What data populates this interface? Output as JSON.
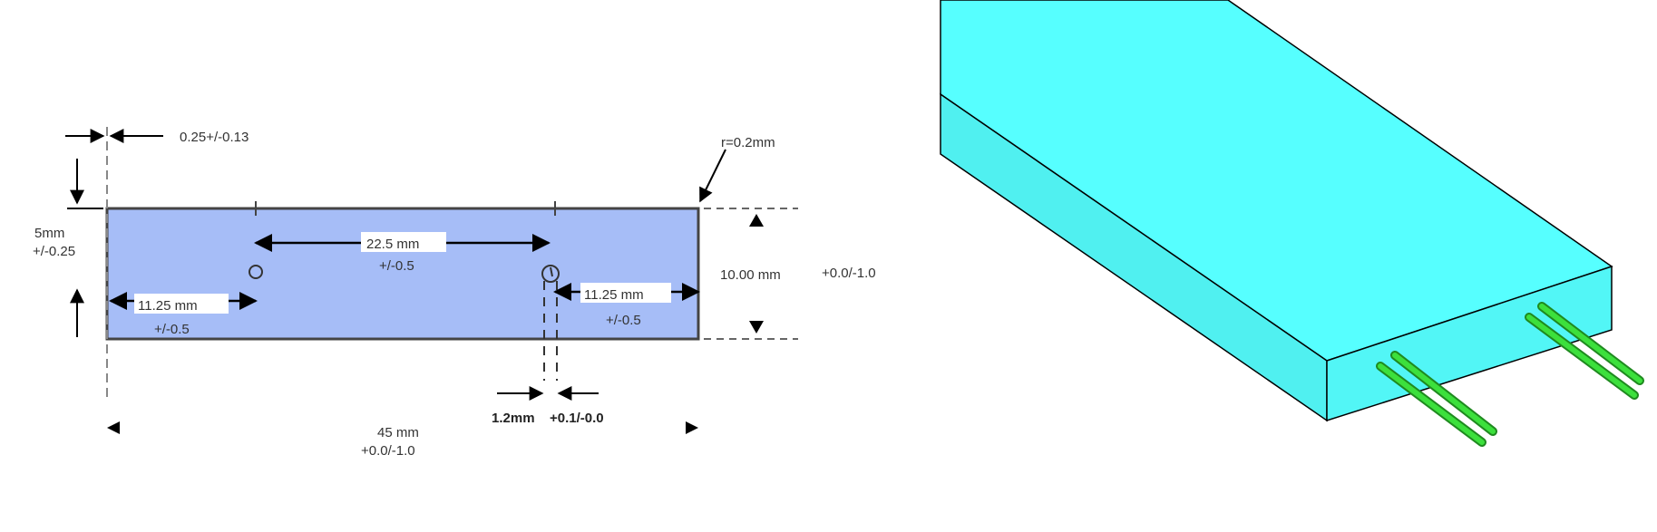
{
  "colors": {
    "plate_fill": "#a6bdf7",
    "slab_top": "#56ffff",
    "slab_side": "#50f0f0",
    "pin_green": "#33cc33",
    "line": "#000000"
  },
  "drawing_2d": {
    "dim_edge_offset": "0.25+/-0.13",
    "dim_radius": "r=0.2mm",
    "dim_half_height": "5mm",
    "dim_half_height_tol": "+/-0.25",
    "dim_hole_spacing": "22.5 mm",
    "dim_hole_spacing_tol": "+/-0.5",
    "dim_left_hole": "11.25 mm",
    "dim_left_hole_tol": "+/-0.5",
    "dim_right_hole": "11.25 mm",
    "dim_right_hole_tol": "+/-0.5",
    "dim_height": "10.00 mm",
    "dim_height_tol": "+0.0/-1.0",
    "dim_hole_dia": "1.2mm",
    "dim_hole_dia_tol": "+0.1/-0.0",
    "dim_length": "45 mm",
    "dim_length_tol": "+0.0/-1.0"
  },
  "model_3d": {
    "icon": "slab-with-two-pins"
  }
}
